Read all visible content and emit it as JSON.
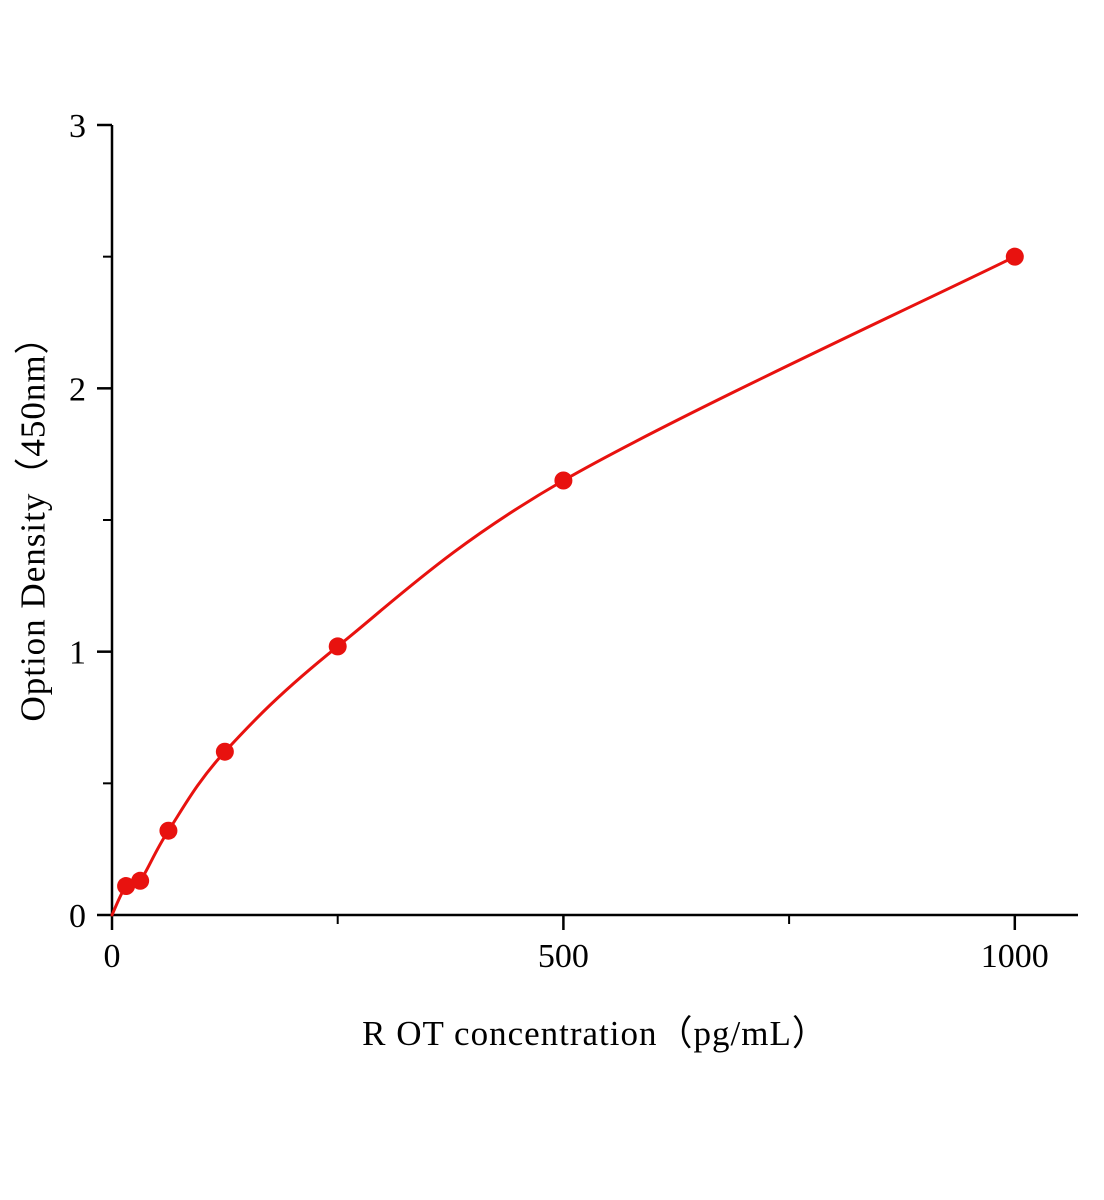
{
  "chart_data": {
    "type": "line",
    "title": "",
    "xlabel": "R OT  concentration（pg/mL）",
    "ylabel": "Option Density（450nm）",
    "series": [
      {
        "name": "standard-curve",
        "x": [
          15.6,
          31.2,
          62.5,
          125,
          250,
          500,
          1000
        ],
        "y": [
          0.11,
          0.13,
          0.32,
          0.62,
          1.02,
          1.65,
          2.5
        ]
      }
    ],
    "curve_start": {
      "x": 0,
      "y": 0
    },
    "xlim": [
      0,
      1070
    ],
    "ylim": [
      0,
      3
    ],
    "x_major_ticks": [
      0,
      500,
      1000
    ],
    "x_major_labels": [
      "0",
      "500",
      "1000"
    ],
    "x_minor_ticks": [
      250,
      750
    ],
    "y_major_ticks": [
      0,
      1,
      2,
      3
    ],
    "y_major_labels": [
      "0",
      "1",
      "2",
      "3"
    ],
    "y_minor_ticks": [
      0.5,
      1.5,
      2.5
    ],
    "grid": false,
    "legend_position": "none",
    "line_color": "#e8120f",
    "marker_color": "#e8120f",
    "axis_color": "#000000",
    "marker_radius": 9,
    "line_width": 3
  }
}
